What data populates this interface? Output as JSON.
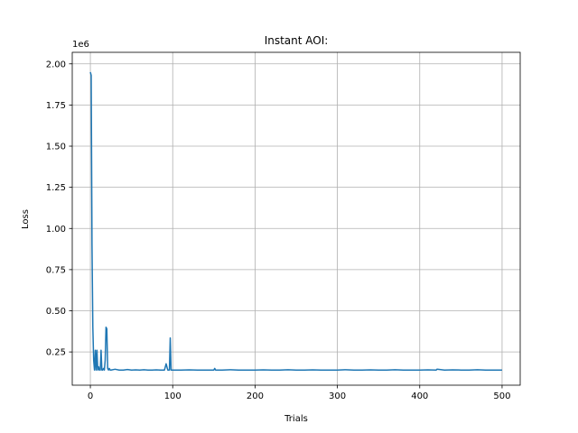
{
  "chart_data": {
    "type": "line",
    "title": "Instant AOI:",
    "xlabel": "Trials",
    "ylabel": "Loss",
    "y_multiplier_label": "1e6",
    "xlim": [
      -22,
      522
    ],
    "ylim": [
      0.048,
      2.07
    ],
    "xticks": [
      0,
      100,
      200,
      300,
      400,
      500
    ],
    "xtick_labels": [
      "0",
      "100",
      "200",
      "300",
      "400",
      "500"
    ],
    "yticks": [
      0.25,
      0.5,
      0.75,
      1.0,
      1.25,
      1.5,
      1.75,
      2.0
    ],
    "ytick_labels": [
      "0.25",
      "0.50",
      "0.75",
      "1.00",
      "1.25",
      "1.50",
      "1.75",
      "2.00"
    ],
    "grid": true,
    "series": [
      {
        "color": "#1f77b4",
        "x": [
          0,
          1,
          2,
          3,
          4,
          5,
          6,
          7,
          8,
          9,
          10,
          11,
          12,
          13,
          14,
          15,
          16,
          17,
          18,
          19,
          20,
          21,
          22,
          23,
          24,
          25,
          30,
          35,
          40,
          45,
          50,
          55,
          60,
          65,
          70,
          75,
          80,
          85,
          88,
          90,
          92,
          94,
          95,
          96,
          97,
          98,
          100,
          110,
          120,
          130,
          140,
          150,
          151,
          152,
          160,
          170,
          180,
          190,
          200,
          210,
          220,
          230,
          240,
          250,
          260,
          270,
          280,
          290,
          300,
          310,
          320,
          330,
          340,
          350,
          360,
          370,
          380,
          390,
          400,
          410,
          420,
          421,
          430,
          440,
          450,
          460,
          470,
          480,
          490,
          500
        ],
        "y": [
          1.95,
          1.93,
          0.9,
          0.4,
          0.2,
          0.14,
          0.26,
          0.14,
          0.26,
          0.14,
          0.16,
          0.14,
          0.14,
          0.26,
          0.14,
          0.14,
          0.15,
          0.14,
          0.2,
          0.4,
          0.39,
          0.15,
          0.14,
          0.15,
          0.14,
          0.14,
          0.145,
          0.14,
          0.14,
          0.143,
          0.14,
          0.141,
          0.14,
          0.142,
          0.14,
          0.14,
          0.141,
          0.14,
          0.14,
          0.14,
          0.178,
          0.14,
          0.14,
          0.14,
          0.335,
          0.14,
          0.14,
          0.14,
          0.141,
          0.14,
          0.14,
          0.14,
          0.15,
          0.14,
          0.14,
          0.142,
          0.14,
          0.14,
          0.14,
          0.141,
          0.14,
          0.14,
          0.142,
          0.14,
          0.14,
          0.141,
          0.14,
          0.14,
          0.14,
          0.142,
          0.14,
          0.14,
          0.141,
          0.14,
          0.14,
          0.142,
          0.14,
          0.14,
          0.14,
          0.141,
          0.14,
          0.145,
          0.14,
          0.141,
          0.14,
          0.14,
          0.142,
          0.14,
          0.14,
          0.14
        ]
      }
    ]
  }
}
